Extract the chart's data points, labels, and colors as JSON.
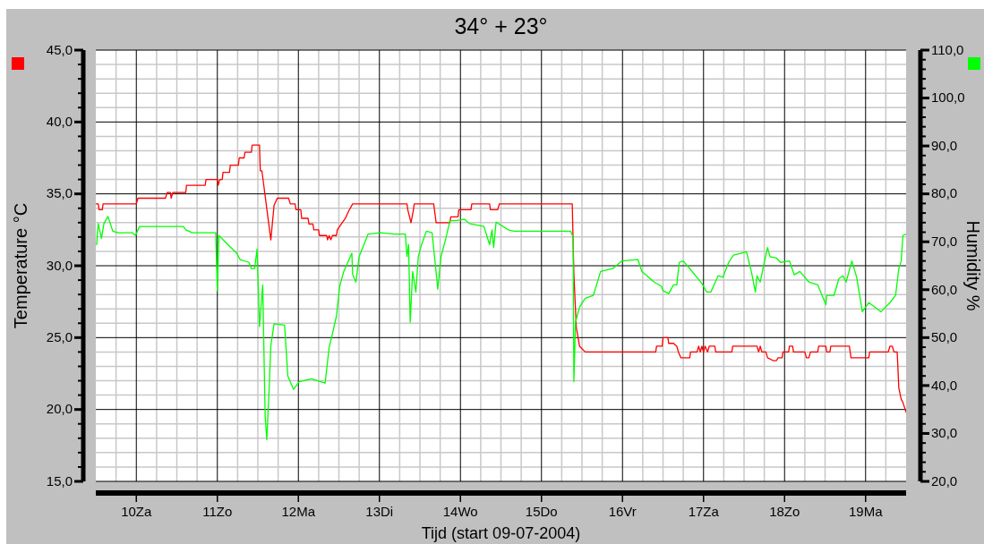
{
  "chart_data": {
    "type": "line",
    "title": "34° + 23°",
    "xlabel": "Tijd (start 09-07-2004)",
    "ylabel": "Temperature °C",
    "y2label": "Humidity %",
    "grid": true,
    "xlim": [
      9.5,
      19.5
    ],
    "xticks": [
      {
        "value": 10,
        "label": "10Za"
      },
      {
        "value": 11,
        "label": "11Zo"
      },
      {
        "value": 12,
        "label": "12Ma"
      },
      {
        "value": 13,
        "label": "13Di"
      },
      {
        "value": 14,
        "label": "14Wo"
      },
      {
        "value": 15,
        "label": "15Do"
      },
      {
        "value": 16,
        "label": "16Vr"
      },
      {
        "value": 17,
        "label": "17Za"
      },
      {
        "value": 18,
        "label": "18Zo"
      },
      {
        "value": 19,
        "label": "19Ma"
      }
    ],
    "ylim": [
      15,
      45
    ],
    "yticks": [
      {
        "value": 15,
        "label": "15,0"
      },
      {
        "value": 20,
        "label": "20,0"
      },
      {
        "value": 25,
        "label": "25,0"
      },
      {
        "value": 30,
        "label": "30,0"
      },
      {
        "value": 35,
        "label": "35,0"
      },
      {
        "value": 40,
        "label": "40,0"
      },
      {
        "value": 45,
        "label": "45,0"
      }
    ],
    "y2lim": [
      20,
      110
    ],
    "y2ticks": [
      {
        "value": 20,
        "label": "20,0"
      },
      {
        "value": 30,
        "label": "30,0"
      },
      {
        "value": 40,
        "label": "40,0"
      },
      {
        "value": 50,
        "label": "50,0"
      },
      {
        "value": 60,
        "label": "60,0"
      },
      {
        "value": 70,
        "label": "70,0"
      },
      {
        "value": 80,
        "label": "80,0"
      },
      {
        "value": 90,
        "label": "90,0"
      },
      {
        "value": 100,
        "label": "100,0"
      },
      {
        "value": 110,
        "label": "110,0"
      }
    ],
    "series": [
      {
        "color": "#ff0000",
        "x": [
          9.5,
          9.53,
          9.54,
          9.58,
          9.59,
          10.0,
          10.02,
          10.36,
          10.38,
          10.42,
          10.43,
          10.45,
          10.61,
          10.62,
          10.85,
          10.86,
          11.0,
          11.01,
          11.03,
          11.06,
          11.07,
          11.15,
          11.16,
          11.26,
          11.27,
          11.33,
          11.34,
          11.42,
          11.43,
          11.52,
          11.53,
          11.55,
          11.66,
          11.7,
          11.74,
          11.88,
          11.9,
          11.96,
          11.97,
          12.03,
          12.04,
          12.12,
          12.13,
          12.18,
          12.19,
          12.25,
          12.26,
          12.35,
          12.36,
          12.38,
          12.4,
          12.42,
          12.47,
          12.48,
          12.53,
          12.58,
          12.62,
          12.67,
          13.34,
          13.35,
          13.39,
          13.42,
          13.43,
          13.67,
          13.7,
          13.87,
          13.88,
          13.97,
          13.98,
          14.13,
          14.14,
          14.36,
          14.37,
          14.46,
          14.48,
          15.38,
          15.4,
          15.43,
          15.47,
          15.54,
          16.41,
          16.42,
          16.49,
          16.5,
          16.56,
          16.57,
          16.63,
          16.67,
          16.69,
          16.72,
          16.83,
          16.84,
          16.92,
          16.94,
          16.96,
          16.98,
          17.0,
          17.02,
          17.05,
          17.07,
          17.14,
          17.15,
          17.35,
          17.36,
          17.66,
          17.68,
          17.7,
          17.72,
          17.77,
          17.79,
          17.86,
          17.9,
          17.92,
          17.97,
          17.98,
          18.05,
          18.06,
          18.1,
          18.11,
          18.25,
          18.27,
          18.3,
          18.32,
          18.41,
          18.42,
          18.51,
          18.52,
          18.56,
          18.57,
          18.8,
          18.82,
          19.04,
          19.05,
          19.28,
          19.3,
          19.33,
          19.35,
          19.39,
          19.41,
          19.44,
          19.46,
          19.5
        ],
        "values": [
          34.3,
          34.3,
          33.9,
          33.9,
          34.3,
          34.3,
          34.7,
          34.7,
          35.1,
          35.1,
          34.7,
          35.1,
          35.1,
          35.6,
          35.6,
          36.0,
          36.0,
          35.6,
          36.0,
          36.0,
          36.5,
          36.5,
          37.0,
          37.0,
          37.5,
          37.5,
          37.9,
          37.9,
          38.4,
          38.4,
          36.6,
          36.6,
          31.8,
          34.2,
          34.7,
          34.7,
          34.3,
          34.3,
          33.9,
          33.9,
          33.3,
          33.3,
          32.9,
          32.9,
          32.5,
          32.5,
          32.1,
          32.1,
          31.8,
          32.1,
          31.8,
          32.1,
          32.1,
          32.5,
          32.9,
          33.3,
          33.8,
          34.3,
          34.3,
          33.9,
          33.0,
          33.9,
          34.3,
          34.3,
          33.0,
          33.0,
          33.4,
          33.4,
          33.9,
          33.9,
          34.3,
          34.3,
          33.9,
          33.9,
          34.3,
          34.3,
          29.4,
          25.7,
          24.4,
          24.0,
          24.0,
          24.4,
          24.4,
          25.0,
          25.0,
          24.6,
          24.6,
          24.4,
          24.0,
          23.6,
          23.6,
          24.0,
          24.0,
          24.4,
          24.0,
          24.4,
          24.0,
          24.4,
          24.0,
          24.4,
          24.4,
          24.0,
          24.0,
          24.4,
          24.4,
          24.0,
          24.4,
          24.0,
          24.0,
          23.6,
          23.4,
          23.4,
          23.6,
          23.6,
          24.0,
          24.0,
          24.4,
          24.4,
          24.0,
          24.0,
          23.6,
          23.6,
          24.0,
          24.0,
          24.4,
          24.4,
          24.0,
          24.0,
          24.4,
          24.4,
          23.6,
          23.6,
          24.0,
          24.0,
          24.4,
          24.4,
          24.0,
          24.0,
          21.5,
          20.7,
          20.5,
          19.8
        ]
      },
      {
        "color": "#00ff00",
        "axis": "y2",
        "x": [
          9.51,
          9.53,
          9.57,
          9.6,
          9.65,
          9.71,
          9.77,
          9.95,
          9.99,
          10.04,
          10.58,
          10.61,
          10.69,
          10.98,
          11.0,
          11.02,
          11.13,
          11.24,
          11.28,
          11.39,
          11.42,
          11.46,
          11.49,
          11.52,
          11.56,
          11.59,
          11.61,
          11.64,
          11.66,
          11.7,
          11.83,
          11.87,
          11.94,
          12.01,
          12.16,
          12.33,
          12.38,
          12.42,
          12.47,
          12.51,
          12.56,
          12.66,
          12.67,
          12.71,
          12.75,
          12.86,
          13.01,
          13.19,
          13.32,
          13.34,
          13.36,
          13.38,
          13.41,
          13.45,
          13.48,
          13.52,
          13.58,
          13.65,
          13.71,
          13.72,
          13.76,
          13.82,
          13.87,
          13.93,
          14.05,
          14.11,
          14.29,
          14.36,
          14.39,
          14.41,
          14.44,
          14.59,
          14.66,
          15.36,
          15.39,
          15.4,
          15.42,
          15.47,
          15.54,
          15.64,
          15.73,
          15.88,
          15.99,
          16.19,
          16.24,
          16.39,
          16.48,
          16.5,
          16.57,
          16.63,
          16.67,
          16.7,
          16.75,
          16.83,
          16.98,
          17.04,
          17.09,
          17.18,
          17.24,
          17.31,
          17.37,
          17.46,
          17.53,
          17.59,
          17.64,
          17.66,
          17.7,
          17.75,
          17.79,
          17.82,
          17.9,
          17.95,
          18.06,
          18.12,
          18.19,
          18.3,
          18.41,
          18.47,
          18.51,
          18.52,
          18.61,
          18.67,
          18.72,
          18.76,
          18.83,
          18.89,
          18.96,
          19.04,
          19.19,
          19.3,
          19.37,
          19.41,
          19.44,
          19.46,
          19.5
        ],
        "values": [
          69.4,
          73.8,
          70.7,
          73.8,
          75.3,
          72.2,
          71.9,
          71.9,
          71.3,
          73.2,
          73.2,
          72.5,
          71.9,
          71.9,
          59.8,
          71.3,
          69.4,
          67.6,
          66.3,
          65.7,
          64.4,
          64.4,
          68.5,
          52.3,
          61.0,
          33.6,
          28.7,
          39.6,
          48.3,
          52.9,
          52.6,
          42.0,
          39.2,
          40.8,
          41.4,
          40.5,
          48.0,
          50.8,
          54.5,
          60.7,
          63.8,
          67.6,
          63.2,
          61.6,
          66.9,
          71.6,
          71.9,
          71.6,
          71.6,
          66.9,
          69.4,
          53.2,
          63.8,
          59.5,
          66.9,
          69.4,
          72.2,
          71.9,
          62.0,
          60.1,
          66.9,
          70.7,
          74.4,
          74.4,
          74.7,
          73.8,
          73.2,
          69.4,
          72.5,
          68.8,
          74.1,
          72.5,
          72.2,
          72.2,
          71.0,
          40.8,
          53.2,
          56.4,
          58.2,
          58.8,
          63.8,
          64.4,
          66.0,
          66.3,
          63.8,
          61.6,
          60.7,
          59.8,
          59.2,
          61.0,
          61.0,
          65.7,
          66.0,
          64.4,
          61.3,
          59.5,
          59.5,
          62.9,
          62.6,
          65.7,
          67.2,
          67.6,
          67.9,
          63.8,
          59.5,
          62.9,
          61.6,
          65.7,
          68.8,
          66.9,
          66.6,
          65.7,
          66.0,
          63.1,
          63.8,
          61.6,
          61.0,
          58.5,
          56.9,
          58.8,
          58.8,
          62.3,
          62.9,
          61.6,
          66.0,
          62.6,
          55.4,
          57.3,
          55.4,
          57.3,
          58.8,
          64.4,
          66.0,
          71.3,
          71.6
        ]
      }
    ]
  }
}
